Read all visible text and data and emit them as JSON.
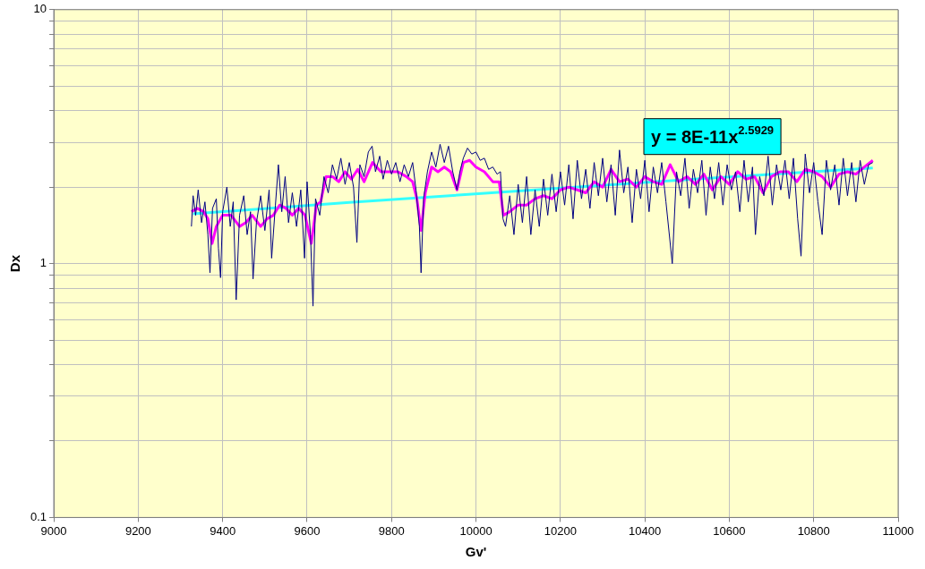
{
  "chart_data": {
    "type": "line",
    "xlabel": "Gv'",
    "ylabel": "Dx",
    "xlim": [
      9000,
      11000
    ],
    "xticks": [
      9000,
      9200,
      9400,
      9600,
      9800,
      10000,
      10200,
      10400,
      10600,
      10800,
      11000
    ],
    "ylim": [
      0.1,
      10
    ],
    "yticks": [
      0.1,
      {
        "value": 0.2,
        "label": null
      },
      {
        "value": 0.3,
        "label": null
      },
      {
        "value": 0.4,
        "label": null
      },
      {
        "value": 0.5,
        "label": null
      },
      {
        "value": 0.6,
        "label": null
      },
      {
        "value": 0.7,
        "label": null
      },
      {
        "value": 0.8,
        "label": null
      },
      {
        "value": 0.9,
        "label": null
      },
      1,
      {
        "value": 2,
        "label": null
      },
      {
        "value": 3,
        "label": null
      },
      {
        "value": 4,
        "label": null
      },
      {
        "value": 5,
        "label": null
      },
      {
        "value": 6,
        "label": null
      },
      {
        "value": 7,
        "label": null
      },
      {
        "value": 8,
        "label": null
      },
      {
        "value": 9,
        "label": null
      },
      10
    ],
    "log": "y",
    "grid": true,
    "marker": "none",
    "line_style": "solid",
    "annotations": [
      "y = 8E-11x$^{2.5929}$"
    ],
    "series": [
      {
        "color": "#000080",
        "x": [
          9326,
          9330,
          9336,
          9342,
          9350,
          9358,
          9365,
          9370,
          9376,
          9385,
          9390,
          9395,
          9400,
          9410,
          9418,
          9425,
          9432,
          9440,
          9450,
          9458,
          9466,
          9472,
          9480,
          9490,
          9500,
          9510,
          9516,
          9525,
          9532,
          9540,
          9548,
          9556,
          9565,
          9575,
          9585,
          9594,
          9600,
          9608,
          9614,
          9620,
          9630,
          9640,
          9650,
          9660,
          9670,
          9680,
          9690,
          9700,
          9710,
          9718,
          9725,
          9735,
          9745,
          9754,
          9762,
          9772,
          9780,
          9790,
          9800,
          9810,
          9820,
          9830,
          9840,
          9850,
          9858,
          9866,
          9870,
          9876,
          9885,
          9895,
          9905,
          9915,
          9925,
          9935,
          9945,
          9955,
          9962,
          9970,
          9980,
          9990,
          10000,
          10010,
          10020,
          10030,
          10040,
          10050,
          10058,
          10064,
          10070,
          10080,
          10090,
          10100,
          10110,
          10120,
          10130,
          10140,
          10150,
          10160,
          10170,
          10180,
          10190,
          10200,
          10210,
          10220,
          10230,
          10240,
          10250,
          10260,
          10270,
          10280,
          10290,
          10300,
          10310,
          10320,
          10330,
          10340,
          10350,
          10360,
          10370,
          10380,
          10390,
          10400,
          10410,
          10420,
          10430,
          10440,
          10450,
          10465,
          10475,
          10485,
          10495,
          10505,
          10515,
          10525,
          10535,
          10545,
          10555,
          10565,
          10575,
          10585,
          10595,
          10605,
          10615,
          10625,
          10635,
          10645,
          10655,
          10662,
          10672,
          10682,
          10692,
          10702,
          10712,
          10722,
          10732,
          10742,
          10752,
          10762,
          10770,
          10780,
          10790,
          10800,
          10810,
          10820,
          10830,
          10840,
          10850,
          10860,
          10870,
          10880,
          10890,
          10900,
          10910,
          10920,
          10930,
          10940
        ],
        "values": [
          1.4,
          1.85,
          1.55,
          1.95,
          1.45,
          1.75,
          1.3,
          0.92,
          1.65,
          1.8,
          1.15,
          0.88,
          1.6,
          2.0,
          1.4,
          1.75,
          0.72,
          1.55,
          1.85,
          1.3,
          1.6,
          0.87,
          1.45,
          1.85,
          1.35,
          1.95,
          1.05,
          1.7,
          2.45,
          1.6,
          2.2,
          1.45,
          1.9,
          1.4,
          1.95,
          1.05,
          2.1,
          1.3,
          0.68,
          1.8,
          1.55,
          2.2,
          1.9,
          2.45,
          2.15,
          2.6,
          2.05,
          2.5,
          2.0,
          1.21,
          2.45,
          2.2,
          2.75,
          2.9,
          2.3,
          2.65,
          2.15,
          2.55,
          2.25,
          2.5,
          2.1,
          2.45,
          2.2,
          2.5,
          1.95,
          1.4,
          0.92,
          1.8,
          2.3,
          2.75,
          2.4,
          2.95,
          2.5,
          2.9,
          2.3,
          1.95,
          2.3,
          2.6,
          2.85,
          2.7,
          2.75,
          2.55,
          2.6,
          2.35,
          2.4,
          2.25,
          2.3,
          1.5,
          1.4,
          1.85,
          1.3,
          2.05,
          1.45,
          2.2,
          1.3,
          1.95,
          1.4,
          2.15,
          1.55,
          2.25,
          1.6,
          2.3,
          1.7,
          2.45,
          1.5,
          2.55,
          1.8,
          2.35,
          1.65,
          2.5,
          1.85,
          2.6,
          1.75,
          2.45,
          1.55,
          2.8,
          1.9,
          2.4,
          1.45,
          2.35,
          1.8,
          2.55,
          1.6,
          2.4,
          1.9,
          2.5,
          1.75,
          1.0,
          2.3,
          1.85,
          2.6,
          1.65,
          2.35,
          1.9,
          2.55,
          1.55,
          2.4,
          1.8,
          2.5,
          1.7,
          2.45,
          1.95,
          2.3,
          1.6,
          2.55,
          1.75,
          2.4,
          1.3,
          2.2,
          1.85,
          2.65,
          1.7,
          2.45,
          1.95,
          2.55,
          1.8,
          2.6,
          1.5,
          1.07,
          2.7,
          1.9,
          2.5,
          1.75,
          1.3,
          2.55,
          1.95,
          2.45,
          1.7,
          2.6,
          1.85,
          2.5,
          1.75,
          2.55,
          2.05,
          2.45,
          2.5
        ]
      },
      {
        "color": "#ff00ff",
        "x": [
          9326,
          9340,
          9355,
          9365,
          9375,
          9385,
          9400,
          9420,
          9440,
          9455,
          9470,
          9490,
          9505,
          9520,
          9535,
          9550,
          9565,
          9580,
          9595,
          9610,
          9622,
          9632,
          9645,
          9660,
          9675,
          9690,
          9705,
          9720,
          9735,
          9755,
          9775,
          9795,
          9815,
          9835,
          9850,
          9860,
          9870,
          9880,
          9895,
          9910,
          9925,
          9940,
          9955,
          9970,
          9985,
          10000,
          10020,
          10040,
          10055,
          10065,
          10080,
          10100,
          10120,
          10140,
          10160,
          10180,
          10200,
          10220,
          10240,
          10260,
          10280,
          10300,
          10320,
          10340,
          10360,
          10380,
          10400,
          10420,
          10440,
          10460,
          10480,
          10500,
          10520,
          10540,
          10560,
          10580,
          10600,
          10620,
          10640,
          10660,
          10680,
          10700,
          10720,
          10740,
          10760,
          10780,
          10800,
          10820,
          10840,
          10860,
          10880,
          10900,
          10920,
          10940
        ],
        "values": [
          1.6,
          1.65,
          1.6,
          1.5,
          1.2,
          1.4,
          1.55,
          1.55,
          1.4,
          1.45,
          1.55,
          1.4,
          1.5,
          1.55,
          1.7,
          1.65,
          1.55,
          1.65,
          1.55,
          1.2,
          1.7,
          1.75,
          2.2,
          2.2,
          2.1,
          2.3,
          2.15,
          2.35,
          2.1,
          2.5,
          2.3,
          2.3,
          2.3,
          2.2,
          2.1,
          1.8,
          1.35,
          1.9,
          2.4,
          2.3,
          2.4,
          2.3,
          1.95,
          2.5,
          2.55,
          2.4,
          2.3,
          2.1,
          2.1,
          1.55,
          1.6,
          1.7,
          1.7,
          1.8,
          1.85,
          1.8,
          1.95,
          2.0,
          1.95,
          1.9,
          2.1,
          2.0,
          2.35,
          2.1,
          2.15,
          2.0,
          2.2,
          2.1,
          2.05,
          2.45,
          2.1,
          2.2,
          2.05,
          2.25,
          1.95,
          2.2,
          2.05,
          2.3,
          2.15,
          2.2,
          1.9,
          2.2,
          2.3,
          2.3,
          2.1,
          2.35,
          2.3,
          2.2,
          2.0,
          2.25,
          2.3,
          2.25,
          2.4,
          2.55
        ]
      },
      {
        "type": "line",
        "color": "#33ffff",
        "x": [
          9330,
          9700,
          10100,
          10500,
          10940
        ],
        "values": [
          1.57,
          1.74,
          1.93,
          2.14,
          2.38
        ]
      }
    ]
  }
}
